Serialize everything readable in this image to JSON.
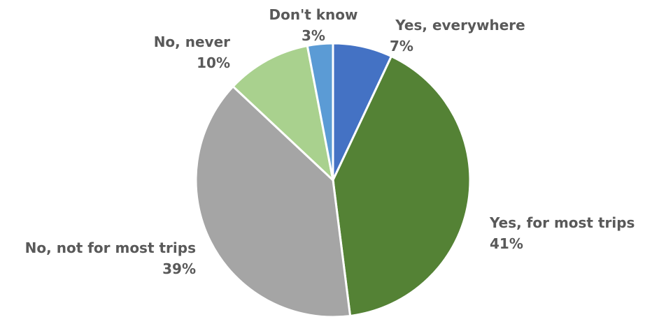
{
  "chart_data": {
    "type": "pie",
    "title": "",
    "start_angle_deg": 0,
    "direction": "clockwise",
    "slices": [
      {
        "label": "Yes, everywhere",
        "value": 7,
        "display": "7%",
        "color": "#4472C4"
      },
      {
        "label": "Yes, for most trips",
        "value": 41,
        "display": "41%",
        "color": "#548235"
      },
      {
        "label": "No, not for most trips",
        "value": 39,
        "display": "39%",
        "color": "#A5A5A5"
      },
      {
        "label": "No, never",
        "value": 10,
        "display": "10%",
        "color": "#A9D18E"
      },
      {
        "label": "Don't know",
        "value": 3,
        "display": "3%",
        "color": "#5B9BD5"
      }
    ]
  }
}
